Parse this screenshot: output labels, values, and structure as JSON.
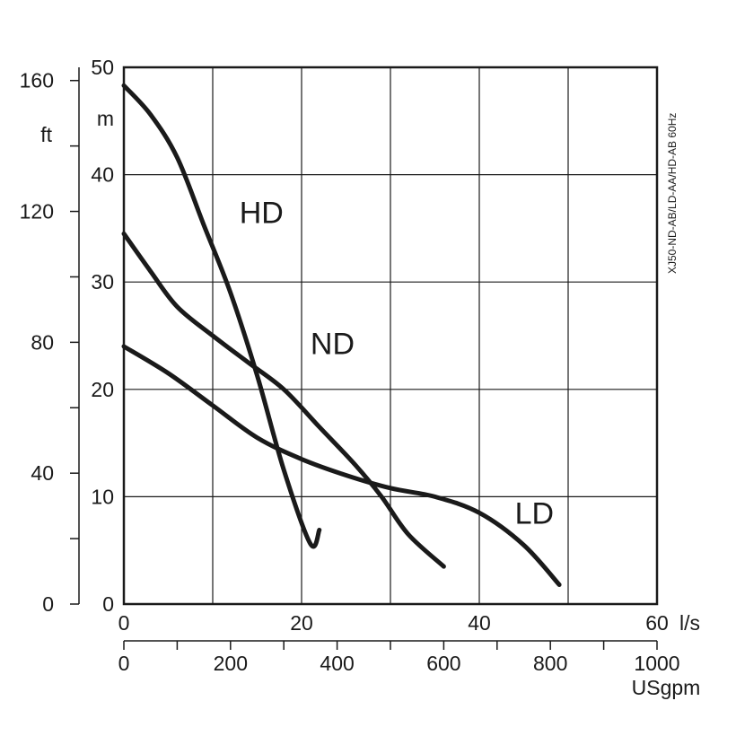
{
  "chart_data": {
    "type": "line",
    "title": "",
    "side_label": "XJ50-ND-AB/LD-AA/HD-AB 60Hz",
    "x_axis_primary": {
      "label": "l/s",
      "range": [
        0,
        60
      ],
      "ticks": [
        "0",
        "20",
        "40",
        "60"
      ]
    },
    "x_axis_secondary": {
      "label": "USgpm",
      "range": [
        0,
        1000
      ],
      "ticks": [
        "0",
        "200",
        "400",
        "600",
        "800",
        "1000"
      ]
    },
    "y_axis_primary": {
      "label": "m",
      "range": [
        0,
        50
      ],
      "ticks": [
        "0",
        "10",
        "20",
        "30",
        "40",
        "50"
      ]
    },
    "y_axis_secondary": {
      "label": "ft",
      "range": [
        0,
        164.04
      ],
      "ticks": [
        "0",
        "40",
        "80",
        "120",
        "160"
      ]
    },
    "grid": true,
    "series": [
      {
        "name": "HD",
        "x": [
          0,
          3,
          6,
          9,
          12,
          15,
          18,
          21,
          22
        ],
        "y": [
          48.3,
          45.6,
          41.6,
          35.3,
          29.0,
          21.3,
          12.5,
          5.6,
          6.9
        ]
      },
      {
        "name": "ND",
        "x": [
          0,
          3,
          6,
          10,
          14,
          18,
          22,
          26,
          29,
          32,
          36
        ],
        "y": [
          34.5,
          31.0,
          27.7,
          25.0,
          22.5,
          20.0,
          16.5,
          13.0,
          10.0,
          6.5,
          3.5
        ]
      },
      {
        "name": "LD",
        "x": [
          0,
          5,
          10,
          15,
          20,
          25,
          30,
          35,
          40,
          45,
          49
        ],
        "y": [
          24.0,
          21.5,
          18.5,
          15.5,
          13.5,
          12.0,
          10.8,
          10.0,
          8.5,
          5.5,
          1.8
        ]
      }
    ]
  }
}
